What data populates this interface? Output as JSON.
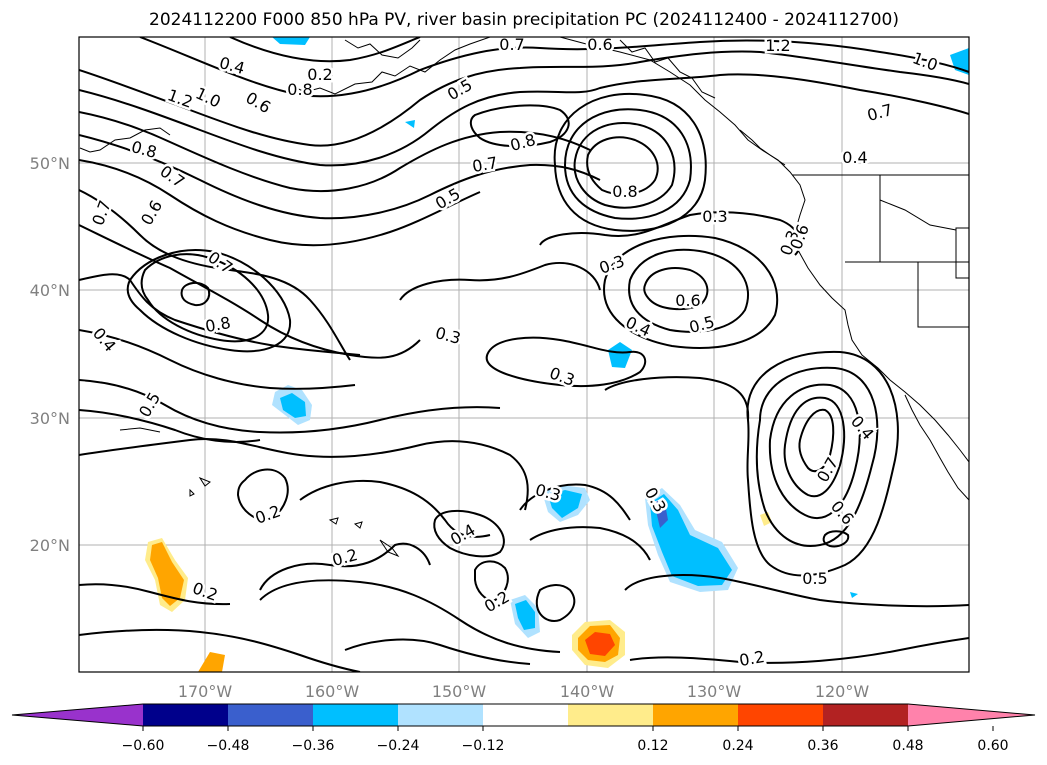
{
  "title": "2024112200 F000 850 hPa PV, river basin precipitation PC (2024112400 - 2024112700)",
  "lat_labels": [
    "50°N",
    "40°N",
    "30°N",
    "20°N"
  ],
  "lon_labels": [
    "170°W",
    "160°W",
    "150°W",
    "140°W",
    "130°W",
    "120°W"
  ],
  "contour_labels": [
    "0.7",
    "0.6",
    "1.2",
    "1.0",
    "0.4",
    "0.2",
    "0.5",
    "0.8",
    "0.6",
    "1.2",
    "1.0",
    "0.8",
    "0.7",
    "0.7",
    "0.8",
    "0.8",
    "0.7",
    "0.4",
    "0.7",
    "0.6",
    "0.5",
    "0.3",
    "0.3",
    "0.7",
    "0.6",
    "0.8",
    "0.4",
    "0.3",
    "0.6",
    "0.4",
    "0.5",
    "0.3",
    "0.5",
    "0.3",
    "0.4",
    "0.7",
    "0.6",
    "0.2",
    "0.3",
    "0.3",
    "0.4",
    "0.2",
    "0.2",
    "0.5",
    "0.2",
    "0.2"
  ],
  "colorbar": {
    "ticks": [
      "−0.60",
      "−0.48",
      "−0.36",
      "−0.24",
      "−0.12",
      "0.12",
      "0.24",
      "0.36",
      "0.48",
      "0.60"
    ],
    "colors": [
      "#9932cc",
      "#00008b",
      "#3a5fcd",
      "#00bfff",
      "#b0e2ff",
      "#ffffff",
      "#ffec8b",
      "#ffa500",
      "#ff4500",
      "#b22222",
      "#ff82ab"
    ]
  }
}
